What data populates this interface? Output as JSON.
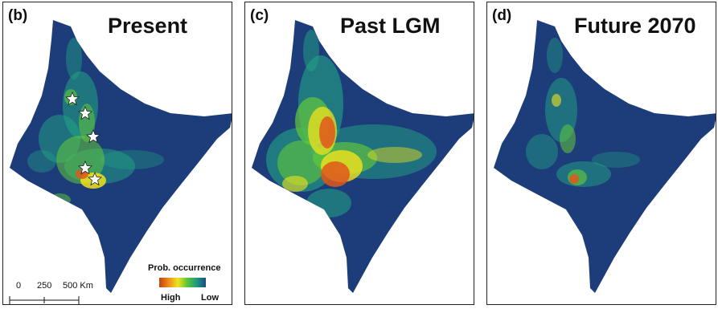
{
  "colors": {
    "low": "#1d3d7a",
    "medium": "#21a584",
    "elevated": "#63c83a",
    "moderate_high": "#f1e21c",
    "high": "#e0571b"
  },
  "panels": [
    {
      "label": "(b)",
      "title": "Present",
      "occurrence_points": 5
    },
    {
      "label": "(c)",
      "title": "Past LGM"
    },
    {
      "label": "(d)",
      "title": "Future 2070"
    }
  ],
  "scale_bar": {
    "ticks": [
      "0",
      "250",
      "500 Km"
    ]
  },
  "legend": {
    "title": "Prob. occurrence",
    "high_label": "High",
    "low_label": "Low"
  }
}
